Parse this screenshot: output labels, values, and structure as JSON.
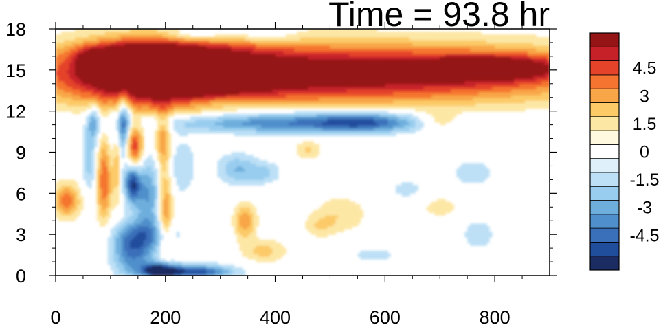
{
  "chart_data": {
    "type": "heatmap",
    "title": "Time = 93.8 hr",
    "xlabel": "",
    "ylabel": "",
    "xlim": [
      0,
      900
    ],
    "ylim": [
      0,
      18
    ],
    "x_ticks": [
      0,
      200,
      400,
      600,
      800
    ],
    "x_tick_labels": [
      "0",
      "200",
      "400",
      "600",
      "800"
    ],
    "y_ticks": [
      0,
      3,
      6,
      9,
      12,
      15,
      18
    ],
    "y_tick_labels": [
      "0",
      "3",
      "6",
      "9",
      "12",
      "15",
      "18"
    ],
    "grid": false,
    "legend": "colorbar-right",
    "colorbar": {
      "min": -6,
      "max": 6,
      "step": 0.75,
      "label_values": [
        4.5,
        3,
        1.5,
        0,
        -1.5,
        -3,
        -4.5
      ],
      "labels": [
        "4.5",
        "3",
        "1.5",
        "0",
        "-1.5",
        "-3",
        "-4.5"
      ],
      "colors": [
        "#1b2c62",
        "#214d9d",
        "#3a6fb9",
        "#4f8fcb",
        "#6eaedd",
        "#99cdef",
        "#bde0f6",
        "#dff0fb",
        "#ffffff",
        "#fffadf",
        "#fde7a5",
        "#fcca67",
        "#f8a647",
        "#f5742f",
        "#e5432a",
        "#c62129",
        "#951416"
      ]
    },
    "features": [
      {
        "x": 500,
        "y": 14.8,
        "value": 6.5,
        "sx": 360,
        "sy": 1.5
      },
      {
        "x": 200,
        "y": 14.8,
        "value": 6.5,
        "sx": 110,
        "sy": 1.7
      },
      {
        "x": 800,
        "y": 15.2,
        "value": 4.2,
        "sx": 80,
        "sy": 0.6
      },
      {
        "x": 140,
        "y": 16.3,
        "value": 3.0,
        "sx": 60,
        "sy": 0.5
      },
      {
        "x": 60,
        "y": 15.5,
        "value": 3.0,
        "sx": 14,
        "sy": 0.6
      },
      {
        "x": 420,
        "y": 11.2,
        "value": -4.0,
        "sx": 170,
        "sy": 0.55
      },
      {
        "x": 560,
        "y": 11.2,
        "value": -2.6,
        "sx": 60,
        "sy": 0.5
      },
      {
        "x": 120,
        "y": 10.8,
        "value": -5.0,
        "sx": 12,
        "sy": 1.8
      },
      {
        "x": 142,
        "y": 9.4,
        "value": 5.0,
        "sx": 12,
        "sy": 1.3
      },
      {
        "x": 112,
        "y": 9.6,
        "value": 3.5,
        "sx": 6,
        "sy": 2.5
      },
      {
        "x": 140,
        "y": 6.8,
        "value": -5.2,
        "sx": 10,
        "sy": 1.0
      },
      {
        "x": 168,
        "y": 6.0,
        "value": -3.0,
        "sx": 16,
        "sy": 2.0
      },
      {
        "x": 195,
        "y": 10.0,
        "value": 3.0,
        "sx": 10,
        "sy": 1.5
      },
      {
        "x": 200,
        "y": 4.8,
        "value": 3.2,
        "sx": 9,
        "sy": 2.2
      },
      {
        "x": 88,
        "y": 7.0,
        "value": 3.8,
        "sx": 10,
        "sy": 2.2
      },
      {
        "x": 20,
        "y": 5.5,
        "value": 3.5,
        "sx": 18,
        "sy": 0.9
      },
      {
        "x": 62,
        "y": 8.5,
        "value": -2.0,
        "sx": 10,
        "sy": 1.8
      },
      {
        "x": 70,
        "y": 11.2,
        "value": -2.5,
        "sx": 8,
        "sy": 0.9
      },
      {
        "x": 140,
        "y": 1.8,
        "value": -3.8,
        "sx": 26,
        "sy": 1.3
      },
      {
        "x": 250,
        "y": 0.3,
        "value": -5.0,
        "sx": 50,
        "sy": 0.35
      },
      {
        "x": 190,
        "y": 0.4,
        "value": -5.5,
        "sx": 20,
        "sy": 0.4
      },
      {
        "x": 170,
        "y": 3.0,
        "value": -2.0,
        "sx": 40,
        "sy": 0.8
      },
      {
        "x": 345,
        "y": 4.0,
        "value": 3.0,
        "sx": 14,
        "sy": 0.9
      },
      {
        "x": 380,
        "y": 1.8,
        "value": 1.8,
        "sx": 30,
        "sy": 0.6
      },
      {
        "x": 520,
        "y": 4.5,
        "value": 1.4,
        "sx": 35,
        "sy": 1.0
      },
      {
        "x": 480,
        "y": 3.6,
        "value": 1.2,
        "sx": 20,
        "sy": 0.6
      },
      {
        "x": 330,
        "y": 7.8,
        "value": -2.2,
        "sx": 25,
        "sy": 0.8
      },
      {
        "x": 380,
        "y": 7.5,
        "value": -1.6,
        "sx": 22,
        "sy": 0.6
      },
      {
        "x": 460,
        "y": 9.2,
        "value": 1.6,
        "sx": 18,
        "sy": 0.5
      },
      {
        "x": 700,
        "y": 11.3,
        "value": 1.8,
        "sx": 25,
        "sy": 0.5
      },
      {
        "x": 640,
        "y": 6.3,
        "value": -1.0,
        "sx": 28,
        "sy": 0.6
      },
      {
        "x": 770,
        "y": 3.0,
        "value": -1.1,
        "sx": 26,
        "sy": 1.0
      },
      {
        "x": 700,
        "y": 5.0,
        "value": 1.2,
        "sx": 25,
        "sy": 0.6
      },
      {
        "x": 760,
        "y": 7.5,
        "value": -1.2,
        "sx": 30,
        "sy": 0.8
      },
      {
        "x": 300,
        "y": 12.7,
        "value": -1.4,
        "sx": 60,
        "sy": 0.4
      },
      {
        "x": 260,
        "y": 17.6,
        "value": -2.2,
        "sx": 40,
        "sy": 0.35
      },
      {
        "x": 380,
        "y": 17.5,
        "value": -1.3,
        "sx": 40,
        "sy": 0.35
      },
      {
        "x": 580,
        "y": 1.5,
        "value": -1.0,
        "sx": 40,
        "sy": 0.5
      },
      {
        "x": 230,
        "y": 8.0,
        "value": -1.5,
        "sx": 18,
        "sy": 1.5
      }
    ]
  }
}
